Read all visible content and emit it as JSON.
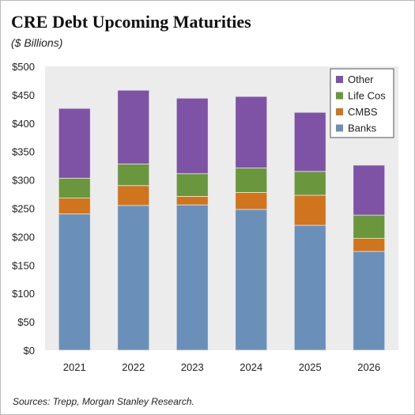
{
  "title": "CRE Debt Upcoming Maturities",
  "subtitle": "($ Billions)",
  "source": "Sources: Trepp, Morgan Stanley Research.",
  "chart_data": {
    "type": "bar",
    "stacked": true,
    "categories": [
      "2021",
      "2022",
      "2023",
      "2024",
      "2025",
      "2026"
    ],
    "series": [
      {
        "name": "Banks",
        "color": "#6a8fb8",
        "values": [
          240,
          255,
          256,
          248,
          220,
          174
        ]
      },
      {
        "name": "CMBS",
        "color": "#d1741e",
        "values": [
          28,
          35,
          15,
          30,
          53,
          23
        ]
      },
      {
        "name": "Life Cos",
        "color": "#6a963e",
        "values": [
          35,
          38,
          40,
          43,
          42,
          41
        ]
      },
      {
        "name": "Other",
        "color": "#7e53a6",
        "values": [
          123,
          130,
          133,
          126,
          104,
          88
        ]
      }
    ],
    "legend_order": [
      "Other",
      "Life Cos",
      "CMBS",
      "Banks"
    ],
    "y_ticks": [
      "$0",
      "$50",
      "$100",
      "$150",
      "$200",
      "$250",
      "$300",
      "$350",
      "$400",
      "$450",
      "$500"
    ],
    "ylim": [
      0,
      500
    ],
    "grid": false,
    "plot_background": "#ececec",
    "legend_position": "top-right"
  }
}
